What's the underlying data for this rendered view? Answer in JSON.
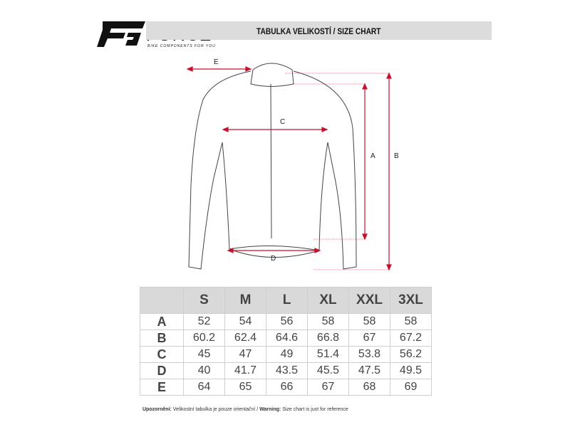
{
  "brand": {
    "name": "FORCE",
    "tagline": "BIKE COMPONENTS FOR YOU"
  },
  "header": {
    "title": "TABULKA VELIKOSTÍ / SIZE CHART"
  },
  "diagram": {
    "labels": [
      "A",
      "B",
      "C",
      "D",
      "E"
    ],
    "accent_color": "#c8102e"
  },
  "table": {
    "columns": [
      "S",
      "M",
      "L",
      "XL",
      "XXL",
      "3XL"
    ],
    "rows": [
      {
        "label": "A",
        "values": [
          "52",
          "54",
          "56",
          "58",
          "58",
          "58"
        ]
      },
      {
        "label": "B",
        "values": [
          "60.2",
          "62.4",
          "64.6",
          "66.8",
          "67",
          "67.2"
        ]
      },
      {
        "label": "C",
        "values": [
          "45",
          "47",
          "49",
          "51.4",
          "53.8",
          "56.2"
        ]
      },
      {
        "label": "D",
        "values": [
          "40",
          "41.7",
          "43.5",
          "45.5",
          "47.5",
          "49.5"
        ]
      },
      {
        "label": "E",
        "values": [
          "64",
          "65",
          "66",
          "67",
          "68",
          "69"
        ]
      }
    ]
  },
  "note": {
    "cz_label": "Upozornění:",
    "cz_text": " Velikostní tabulka je pouze orientační / ",
    "en_label": "Warning:",
    "en_text": " Size chart is just for reference"
  }
}
